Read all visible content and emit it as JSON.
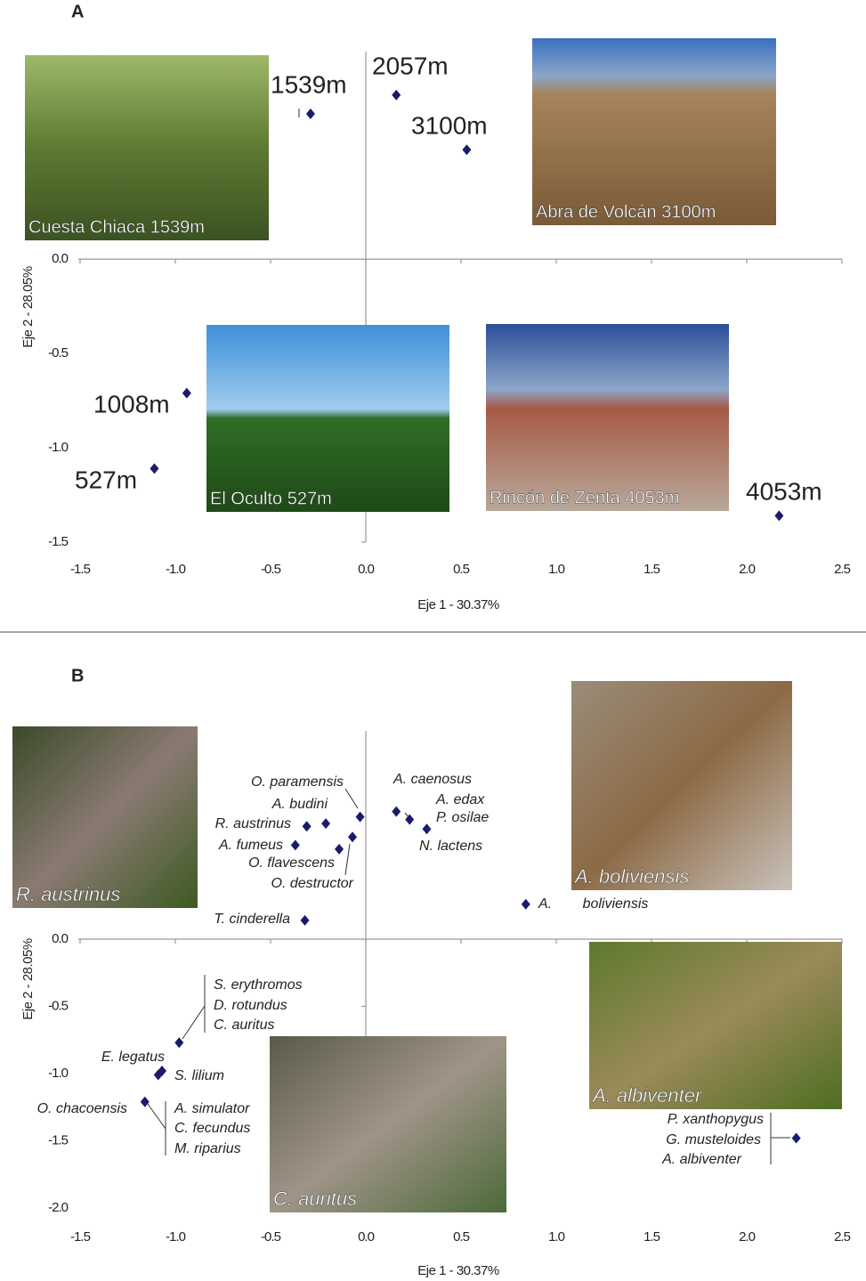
{
  "chart_data": [
    {
      "type": "scatter",
      "panel": "A",
      "x_label": "Eje 1 - 30.37%",
      "y_label": "Eje 2 - 28.05%",
      "color": "#1b1b6b",
      "x": [
        -0.29,
        0.16,
        0.53,
        -0.94,
        -1.11,
        2.17
      ],
      "values": [
        0.77,
        0.87,
        0.58,
        -0.71,
        -1.11,
        -1.36
      ],
      "point_labels": [
        "1539m",
        "2057m",
        "3100m",
        "1008m",
        "527m",
        "4053m"
      ],
      "xlim": [
        -1.5,
        2.5
      ],
      "xticks": [
        -1.5,
        {
          "value": -1,
          "label": "-1.0"
        },
        -0.5,
        {
          "value": 0,
          "label": "0.0"
        },
        0.5,
        {
          "value": 1,
          "label": "1.0"
        },
        1.5,
        {
          "value": 2,
          "label": "2.0"
        },
        2.5
      ],
      "ylim": [
        -1.5,
        1.1
      ],
      "yticks": [
        {
          "value": 0,
          "label": "0.0"
        },
        -0.5,
        {
          "value": -1,
          "label": "-1.0"
        },
        -1.5
      ],
      "photos": [
        {
          "caption": "Cuesta Chiaca 1539m"
        },
        {
          "caption": "Abra de Volcán 3100m"
        },
        {
          "caption": "El Oculto 527m"
        },
        {
          "caption": "Rincón de Zenta 4053m"
        }
      ]
    },
    {
      "type": "scatter",
      "panel": "B",
      "x_label": "Eje 1 - 30.37%",
      "y_label": "Eje 2 - 28.05%",
      "color": "#1b1b6b",
      "x": [
        -0.03,
        -0.21,
        -0.31,
        -0.37,
        -0.14,
        -0.07,
        -0.32,
        0.16,
        0.23,
        0.32,
        0.84,
        -0.98,
        -1.09,
        -1.07,
        -1.16,
        2.26
      ],
      "values": [
        0.91,
        0.86,
        0.84,
        0.7,
        0.67,
        0.76,
        0.14,
        0.95,
        0.89,
        0.82,
        0.26,
        -0.77,
        -1.01,
        -0.98,
        -1.21,
        -1.48
      ],
      "point_labels": [
        [
          "O. paramensis"
        ],
        [
          "A. budini"
        ],
        [
          "R. austrinus"
        ],
        [
          "A. fumeus"
        ],
        [
          "O. flavescens"
        ],
        [
          "O. destructor"
        ],
        [
          "T. cinderella"
        ],
        [
          "A. caenosus"
        ],
        [
          "A. edax",
          "P. osilae"
        ],
        [
          "N. lactens"
        ],
        [
          "A. boliviensis"
        ],
        [
          "S. erythromos",
          "D. rotundus",
          "C. auritus"
        ],
        [
          "E. legatus"
        ],
        [
          "S. lilium"
        ],
        [
          "O. chacoensis",
          "A. simulator",
          "C. fecundus",
          "M. riparius"
        ],
        [
          "P. xanthopygus",
          "G. musteloides",
          "A. albiventer"
        ]
      ],
      "xlim": [
        -1.5,
        2.5
      ],
      "xticks": [
        -1.5,
        {
          "value": -1,
          "label": "-1.0"
        },
        -0.5,
        {
          "value": 0,
          "label": "0.0"
        },
        0.5,
        {
          "value": 1,
          "label": "1.0"
        },
        1.5,
        {
          "value": 2,
          "label": "2.0"
        },
        2.5
      ],
      "ylim": [
        -2,
        1.55
      ],
      "yticks": [
        {
          "value": 0,
          "label": "0.0"
        },
        -0.5,
        {
          "value": -1,
          "label": "-1.0"
        },
        -1.5,
        {
          "value": -2,
          "label": "-2.0"
        }
      ],
      "photos": [
        {
          "caption": "R. austrinus"
        },
        {
          "caption": "A. boliviensis"
        },
        {
          "caption": "A. albiventer"
        },
        {
          "caption": "C. auritus"
        }
      ]
    }
  ]
}
